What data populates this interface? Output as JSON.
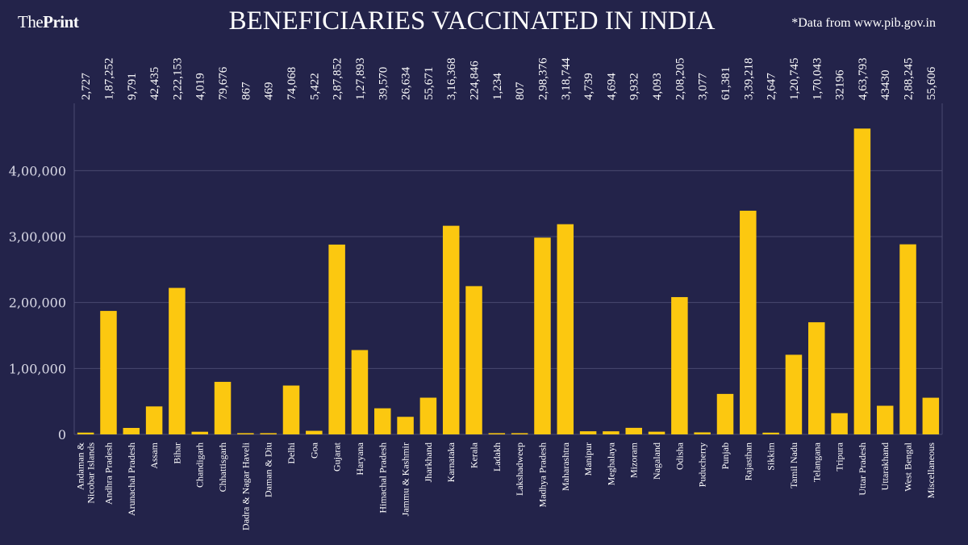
{
  "brand": {
    "prefix": "The",
    "name": "Print"
  },
  "source_note": "*Data from www.pib.gov.in",
  "colors": {
    "background": "#23234a",
    "bar": "#fcc810",
    "grid": "#4a4a70",
    "text": "#ffffff"
  },
  "chart_data": {
    "type": "bar",
    "title": "BENEFICIARIES VACCINATED IN INDIA",
    "xlabel": "",
    "ylabel": "",
    "ylim": [
      0,
      480000
    ],
    "yticks": [
      0,
      100000,
      200000,
      300000,
      400000
    ],
    "ytick_labels": [
      "0",
      "1,00,000",
      "2,00,000",
      "3,00,000",
      "4,00,000"
    ],
    "grid": true,
    "categories": [
      [
        "Andaman &",
        "Nicobar Islands"
      ],
      "Andhra Pradesh",
      "Arunachal Pradesh",
      "Assam",
      "Bihar",
      "Chandigarh",
      "Chhattisgarh",
      "Dadra & Nagar Haveli",
      "Daman & Diu",
      "Delhi",
      "Goa",
      "Gujarat",
      "Haryana",
      "Himachal Pradesh",
      "Jammu & Kashmir",
      "Jharkhand",
      "Karnataka",
      "Kerala",
      "Ladakh",
      "Lakshadweep",
      "Madhya Pradesh",
      "Maharashtra",
      "Manipur",
      "Meghalaya",
      "Mizoram",
      "Nagaland",
      "Odisha",
      "Puducherry",
      "Punjab",
      "Rajasthan",
      "Sikkim",
      "Tamil Nadu",
      "Telangana",
      "Tripura",
      "Uttar Pradesh",
      "Uttarakhand",
      "West Bengal",
      "Miscellaneous"
    ],
    "values": [
      2727,
      187252,
      9791,
      42435,
      222153,
      4019,
      79676,
      867,
      469,
      74068,
      5422,
      287852,
      127893,
      39570,
      26634,
      55671,
      316368,
      224846,
      1234,
      807,
      298376,
      318744,
      4739,
      4694,
      9932,
      4093,
      208205,
      3077,
      61381,
      339218,
      2647,
      120745,
      170043,
      32196,
      463793,
      43430,
      288245,
      55606
    ],
    "value_labels": [
      "2,727",
      "1,87,252",
      "9,791",
      "42,435",
      "2,22,153",
      "4,019",
      "79,676",
      "867",
      "469",
      "74,068",
      "5,422",
      "2,87,852",
      "1,27,893",
      "39,570",
      "26,634",
      "55,671",
      "3,16,368",
      "224,846",
      "1,234",
      "807",
      "2,98,376",
      "3,18,744",
      "4,739",
      "4,694",
      "9,932",
      "4,093",
      "2,08,205",
      "3,077",
      "61,381",
      "3,39,218",
      "2,647",
      "1,20,745",
      "1,70,043",
      "32196",
      "4,63,793",
      "43430",
      "2,88,245",
      "55,606"
    ]
  }
}
